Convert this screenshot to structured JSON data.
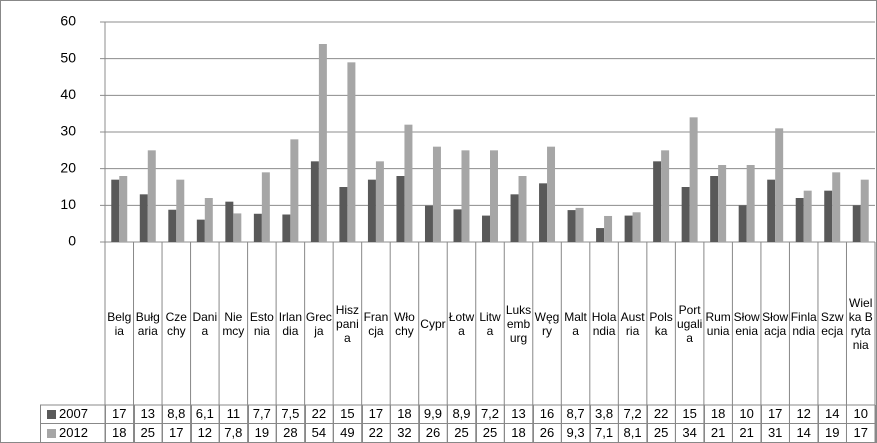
{
  "chart_data": {
    "type": "bar",
    "categories": [
      "Belgia",
      "Bułgaria",
      "Czechy",
      "Dania",
      "Niemcy",
      "Estonia",
      "Irlandia",
      "Grecja",
      "Hiszpania",
      "Francja",
      "Włochy",
      "Cypr",
      "Łotwa",
      "Litwa",
      "Luksemburg",
      "Węgry",
      "Malta",
      "Holandia",
      "Austria",
      "Polska",
      "Portugalia",
      "Rumunia",
      "Słowenia",
      "Słowacja",
      "Finlandia",
      "Szwecja",
      "Wielka Brytania"
    ],
    "series": [
      {
        "name": "2007",
        "color": "#595959",
        "values": [
          17,
          13,
          8.8,
          6.1,
          11,
          7.7,
          7.5,
          22,
          15,
          17,
          18,
          9.9,
          8.9,
          7.2,
          13,
          16,
          8.7,
          3.8,
          7.2,
          22,
          15,
          18,
          10,
          17,
          12,
          14,
          10
        ],
        "value_labels": [
          "17",
          "13",
          "8,8",
          "6,1",
          "11",
          "7,7",
          "7,5",
          "22",
          "15",
          "17",
          "18",
          "9,9",
          "8,9",
          "7,2",
          "13",
          "16",
          "8,7",
          "3,8",
          "7,2",
          "22",
          "15",
          "18",
          "10",
          "17",
          "12",
          "14",
          "10"
        ]
      },
      {
        "name": "2012",
        "color": "#a6a6a6",
        "values": [
          18,
          25,
          17,
          12,
          7.8,
          19,
          28,
          54,
          49,
          22,
          32,
          26,
          25,
          25,
          18,
          26,
          9.3,
          7.1,
          8.1,
          25,
          34,
          21,
          21,
          31,
          14,
          19,
          17
        ],
        "value_labels": [
          "18",
          "25",
          "17",
          "12",
          "7,8",
          "19",
          "28",
          "54",
          "49",
          "22",
          "32",
          "26",
          "25",
          "25",
          "18",
          "26",
          "9,3",
          "7,1",
          "8,1",
          "25",
          "34",
          "21",
          "21",
          "31",
          "14",
          "19",
          "17"
        ]
      }
    ],
    "ylim": [
      0,
      60
    ],
    "yticks": [
      0,
      10,
      20,
      30,
      40,
      50,
      60
    ],
    "grid": true
  }
}
